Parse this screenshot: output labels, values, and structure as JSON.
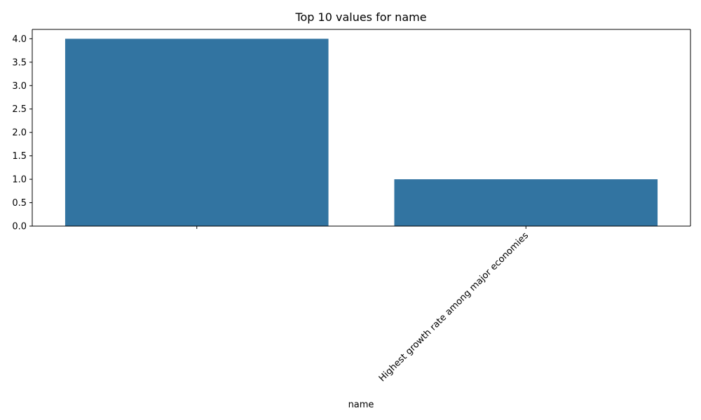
{
  "chart_data": {
    "type": "bar",
    "title": "Top 10 values for name",
    "xlabel": "name",
    "ylabel": "",
    "categories": [
      "",
      "Highest growth rate among major economies"
    ],
    "values": [
      4,
      1
    ],
    "ylim": [
      0,
      4.2
    ],
    "yticks": [
      "0.0",
      "0.5",
      "1.0",
      "1.5",
      "2.0",
      "2.5",
      "3.0",
      "3.5",
      "4.0"
    ],
    "grid": false,
    "legend": "none",
    "bar_color": "#3274a1",
    "axis_color": "#000000"
  }
}
